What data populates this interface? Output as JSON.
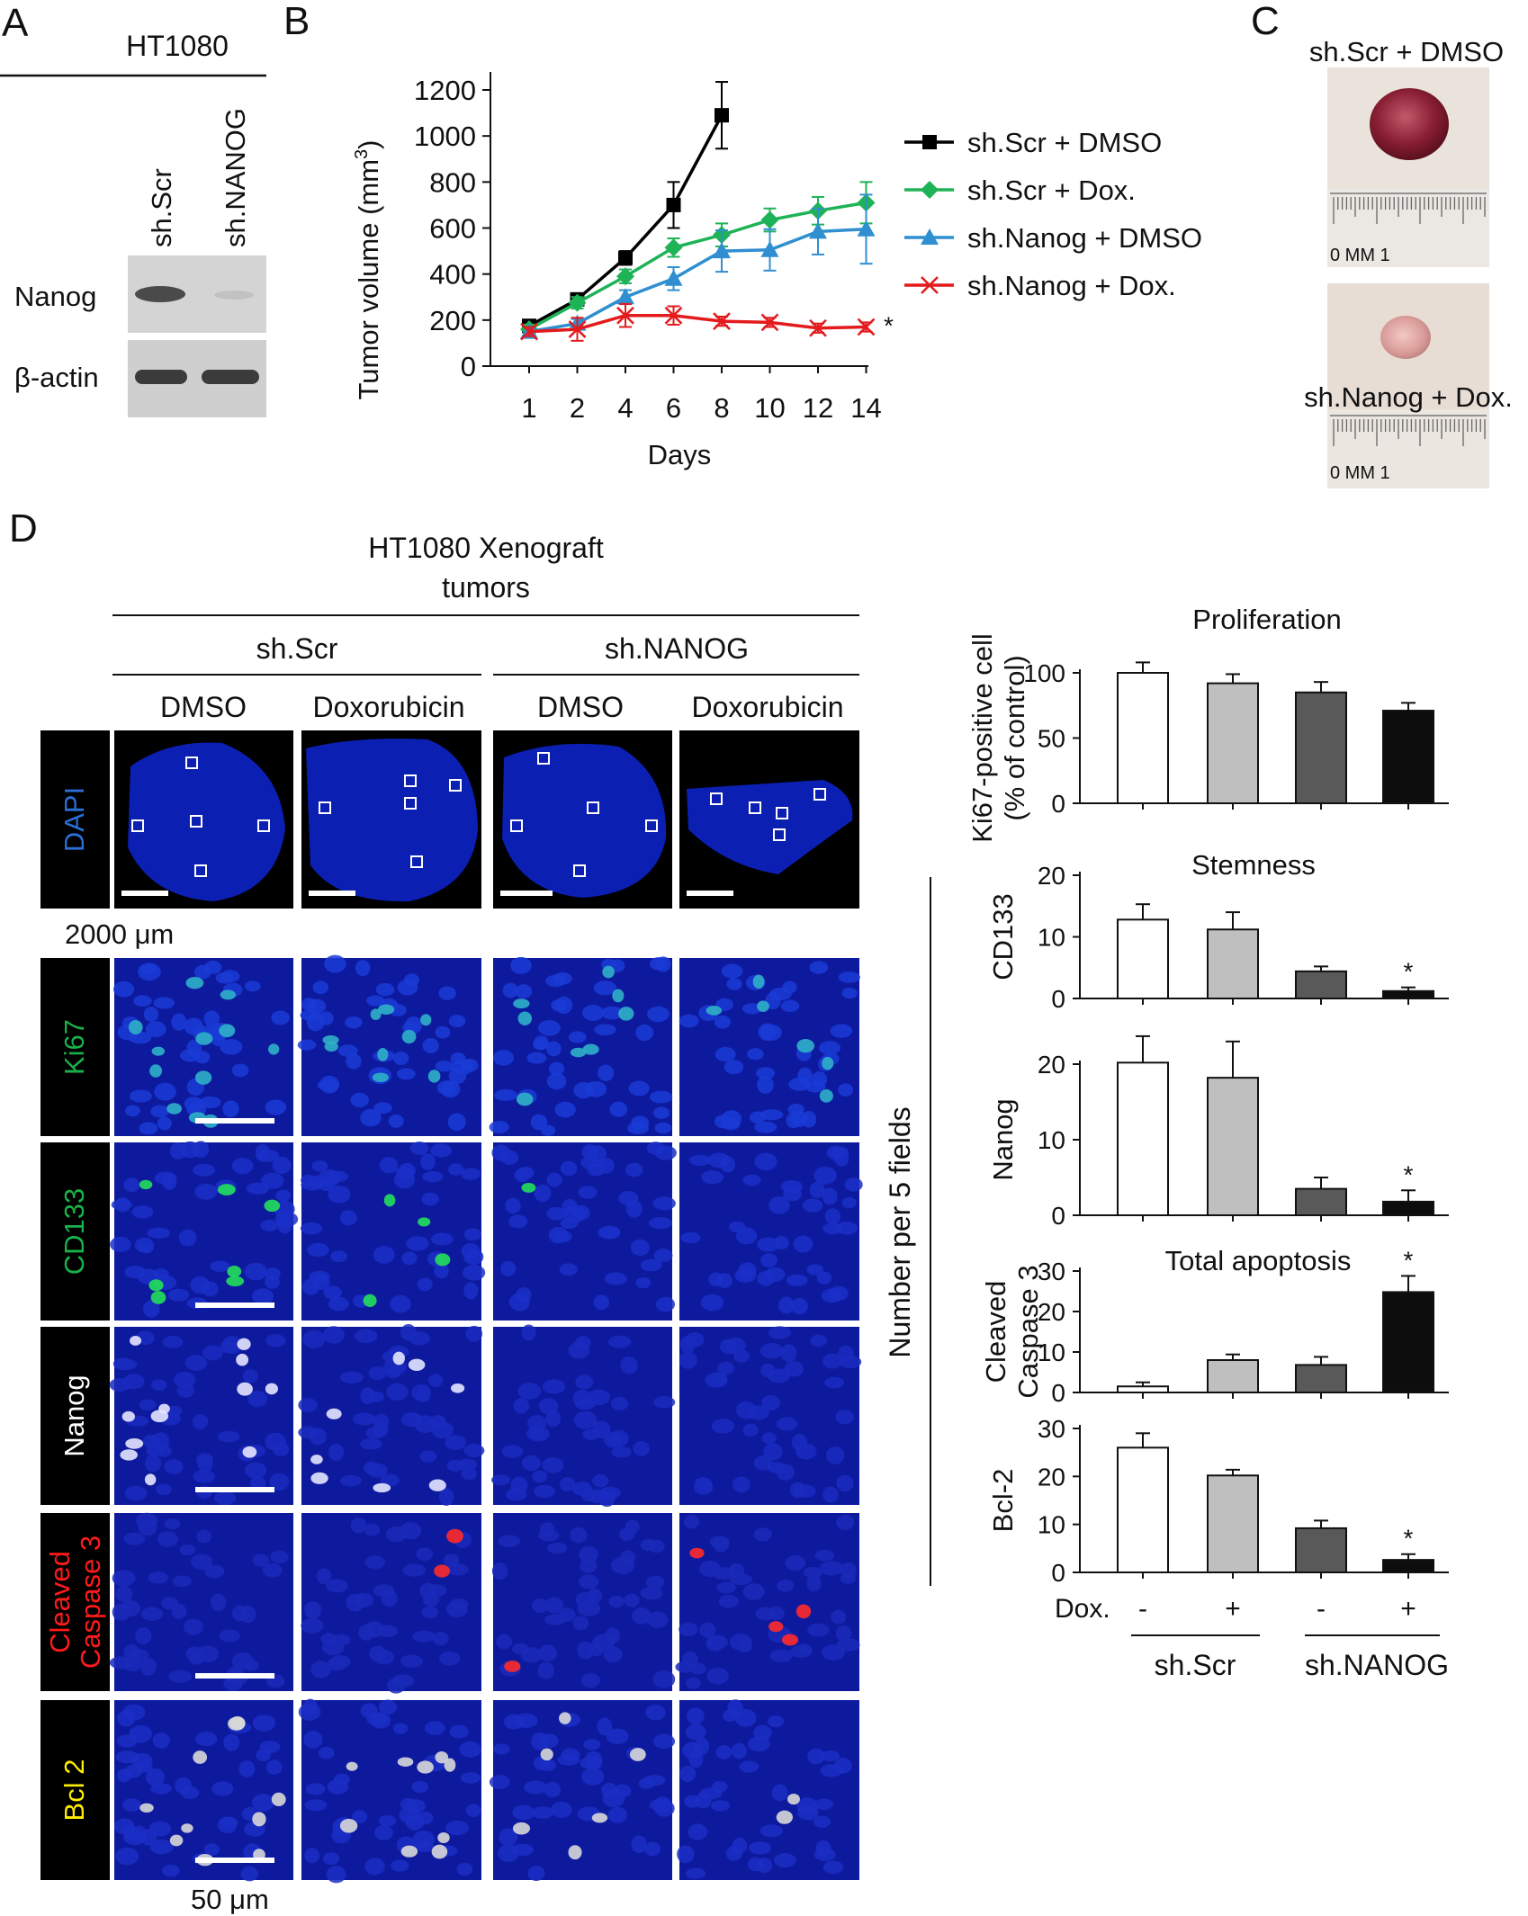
{
  "panels": {
    "A": {
      "letter": "A",
      "cell_line": "HT1080",
      "lanes": [
        "sh.Scr",
        "sh.NANOG"
      ],
      "rows": [
        "Nanog",
        "β-actin"
      ]
    },
    "B": {
      "letter": "B",
      "significance": "*",
      "chart_data": {
        "type": "line",
        "xlabel": "Days",
        "ylabel": "Tumor volume (mm",
        "ylabel_sup": "3",
        "ylabel_tail": ")",
        "categories": [
          "1",
          "2",
          "4",
          "6",
          "8",
          "10",
          "12",
          "14"
        ],
        "ylim": [
          0,
          1200
        ],
        "yticks": [
          0,
          200,
          400,
          600,
          800,
          1000,
          1200
        ],
        "legend_position": "right",
        "series": [
          {
            "name": "sh.Scr + DMSO",
            "color": "#000000",
            "marker": "square",
            "values": [
              175,
              290,
              470,
              700,
              1090,
              null,
              null,
              null
            ],
            "errors": [
              20,
              25,
              30,
              100,
              145,
              null,
              null,
              null
            ]
          },
          {
            "name": "sh.Scr + Dox.",
            "color": "#1fb357",
            "marker": "diamond",
            "values": [
              160,
              275,
              390,
              515,
              570,
              635,
              675,
              710
            ],
            "errors": [
              20,
              25,
              30,
              40,
              50,
              50,
              60,
              90
            ]
          },
          {
            "name": "sh.Nanog + DMSO",
            "color": "#2f8fd0",
            "marker": "triangle",
            "values": [
              150,
              185,
              300,
              380,
              500,
              505,
              585,
              595
            ],
            "errors": [
              15,
              20,
              30,
              50,
              90,
              90,
              100,
              150
            ]
          },
          {
            "name": "sh.Nanog + Dox.",
            "color": "#e41a1c",
            "marker": "x",
            "values": [
              150,
              160,
              220,
              220,
              195,
              190,
              165,
              170
            ],
            "errors": [
              20,
              50,
              50,
              40,
              20,
              20,
              20,
              20
            ]
          }
        ]
      }
    },
    "C": {
      "letter": "C",
      "photo_labels": [
        "sh.Scr + DMSO",
        "sh.Nanog + Dox."
      ],
      "ruler_text": "0 MM 1"
    },
    "D": {
      "letter": "D",
      "title_line1": "HT1080 Xenograft",
      "title_line2": "tumors",
      "groups": [
        "sh.Scr",
        "sh.NANOG"
      ],
      "columns": [
        "DMSO",
        "Doxorubicin",
        "DMSO",
        "Doxorubicin"
      ],
      "stains": [
        {
          "label": "DAPI",
          "color": "#2a6fd6"
        },
        {
          "label": "Ki67",
          "color": "#17b34a"
        },
        {
          "label": "CD133",
          "color": "#17b34a"
        },
        {
          "label": "Nanog",
          "color": "#ffffff"
        },
        {
          "label": "Cleaved\nCaspase 3",
          "color": "#ff1a1a"
        },
        {
          "label": "Bcl 2",
          "color": "#ffee00"
        }
      ],
      "scale_bar_large": "2000 μm",
      "scale_bar_small": "50 μm",
      "y_axis_shared": "Number per 5 fields",
      "treatment_label": "Dox.",
      "treatment_signs": [
        "-",
        "+",
        "-",
        "+"
      ],
      "bar_colors": [
        "#ffffff",
        "#bfbfbf",
        "#595959",
        "#0d0d0d"
      ],
      "charts": [
        {
          "title": "Proliferation",
          "ylabel": "Ki67-positive cell\n(% of control)",
          "ylim": [
            0,
            100
          ],
          "yticks": [
            0,
            50,
            100
          ],
          "values": [
            100,
            92,
            85,
            71
          ],
          "errors": [
            8,
            7,
            8,
            6
          ],
          "stars": [
            "",
            "",
            "",
            ""
          ]
        },
        {
          "title": "Stemness",
          "ylabel": "CD133",
          "ylim": [
            0,
            20
          ],
          "yticks": [
            0,
            10,
            20
          ],
          "values": [
            12.8,
            11.2,
            4.4,
            1.2
          ],
          "errors": [
            2.5,
            2.8,
            0.8,
            0.6
          ],
          "stars": [
            "",
            "",
            "",
            "*"
          ]
        },
        {
          "title": "",
          "ylabel": "Nanog",
          "ylim": [
            0,
            20
          ],
          "yticks": [
            0,
            10,
            20
          ],
          "values": [
            20.2,
            18.2,
            3.5,
            1.8
          ],
          "errors": [
            3.5,
            4.8,
            1.5,
            1.5
          ],
          "stars": [
            "",
            "",
            "",
            "*"
          ]
        },
        {
          "title": "Total apoptosis",
          "ylabel": "Cleaved\nCaspase 3",
          "ylim": [
            0,
            30
          ],
          "yticks": [
            0,
            10,
            20,
            30
          ],
          "values": [
            1.5,
            8,
            6.8,
            24.8
          ],
          "errors": [
            1.0,
            1.4,
            2.0,
            4.0
          ],
          "stars": [
            "",
            "",
            "",
            "*"
          ]
        },
        {
          "title": "",
          "ylabel": "Bcl-2",
          "ylim": [
            0,
            30
          ],
          "yticks": [
            0,
            10,
            20,
            30
          ],
          "values": [
            26,
            20.2,
            9.2,
            2.6
          ],
          "errors": [
            3.0,
            1.2,
            1.6,
            1.2
          ],
          "stars": [
            "",
            "",
            "",
            "*"
          ]
        }
      ]
    }
  }
}
